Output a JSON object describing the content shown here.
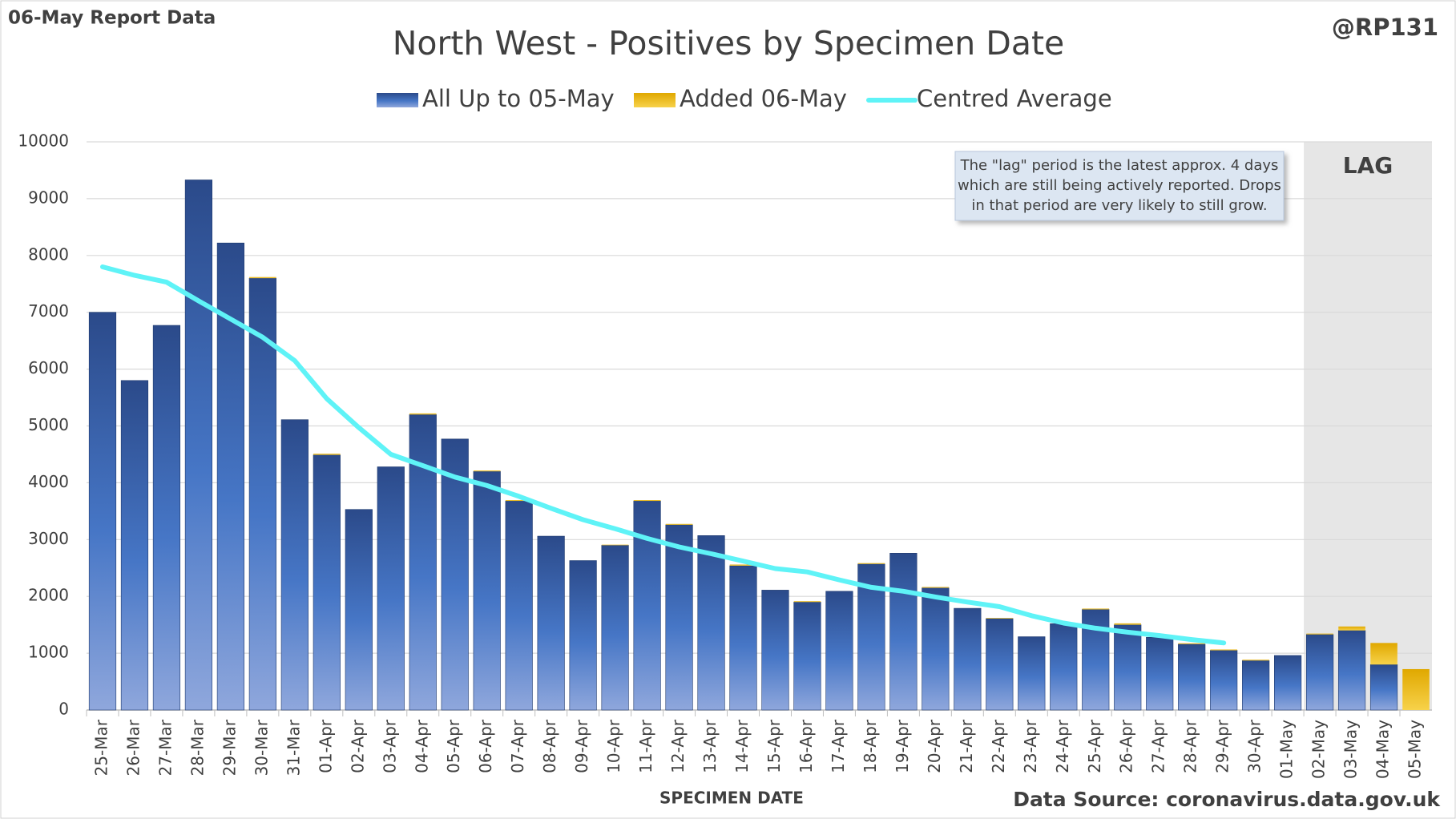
{
  "chart_data": {
    "type": "bar",
    "report_label": "06-May Report Data",
    "author": "@RP131",
    "title": "North West - Positives by Specimen Date",
    "x_label": "SPECIMEN DATE",
    "source": "Data Source: coronavirus.data.gov.uk",
    "lag_label": "LAG",
    "annotation": [
      "The \"lag\" period is the latest approx. 4 days",
      "which are still being actively reported.  Drops",
      "in that period are very likely to still grow."
    ],
    "categories": [
      "25-Mar",
      "26-Mar",
      "27-Mar",
      "28-Mar",
      "29-Mar",
      "30-Mar",
      "31-Mar",
      "01-Apr",
      "02-Apr",
      "03-Apr",
      "04-Apr",
      "05-Apr",
      "06-Apr",
      "07-Apr",
      "08-Apr",
      "09-Apr",
      "10-Apr",
      "11-Apr",
      "12-Apr",
      "13-Apr",
      "14-Apr",
      "15-Apr",
      "16-Apr",
      "17-Apr",
      "18-Apr",
      "19-Apr",
      "20-Apr",
      "21-Apr",
      "22-Apr",
      "23-Apr",
      "24-Apr",
      "25-Apr",
      "26-Apr",
      "27-Apr",
      "28-Apr",
      "29-Apr",
      "30-Apr",
      "01-May",
      "02-May",
      "03-May",
      "04-May",
      "05-May"
    ],
    "series": [
      {
        "name": "All Up to 05-May",
        "color": "#2b4a8a",
        "values": [
          7000,
          5800,
          6770,
          9330,
          8220,
          7600,
          5110,
          4490,
          3530,
          4280,
          5200,
          4770,
          4200,
          3680,
          3060,
          2630,
          2900,
          3680,
          3260,
          3070,
          2540,
          2110,
          1900,
          2090,
          2570,
          2760,
          2150,
          1790,
          1610,
          1290,
          1520,
          1770,
          1500,
          1280,
          1160,
          1050,
          870,
          960,
          1330,
          1400,
          800,
          0
        ]
      },
      {
        "name": "Added 06-May",
        "color": "#e0a800",
        "values": [
          0,
          0,
          0,
          0,
          0,
          20,
          0,
          20,
          0,
          0,
          20,
          0,
          15,
          15,
          0,
          0,
          10,
          15,
          15,
          0,
          20,
          0,
          15,
          0,
          15,
          0,
          15,
          0,
          10,
          0,
          0,
          15,
          25,
          0,
          15,
          15,
          15,
          0,
          15,
          70,
          380,
          720
        ]
      },
      {
        "name": "Centred Average",
        "color": "#5ff3f7",
        "type": "line",
        "values": [
          7800,
          7650,
          7530,
          7200,
          6880,
          6560,
          6150,
          5480,
          4970,
          4500,
          4300,
          4100,
          3950,
          3760,
          3550,
          3350,
          3190,
          3020,
          2870,
          2750,
          2620,
          2490,
          2430,
          2290,
          2160,
          2090,
          1990,
          1900,
          1820,
          1660,
          1530,
          1440,
          1370,
          1310,
          1240,
          1180,
          null,
          null,
          null,
          null,
          null,
          null
        ]
      }
    ],
    "ylim": [
      0,
      10000
    ],
    "yticks": [
      0,
      1000,
      2000,
      3000,
      4000,
      5000,
      6000,
      7000,
      8000,
      9000,
      10000
    ],
    "grid": true
  }
}
